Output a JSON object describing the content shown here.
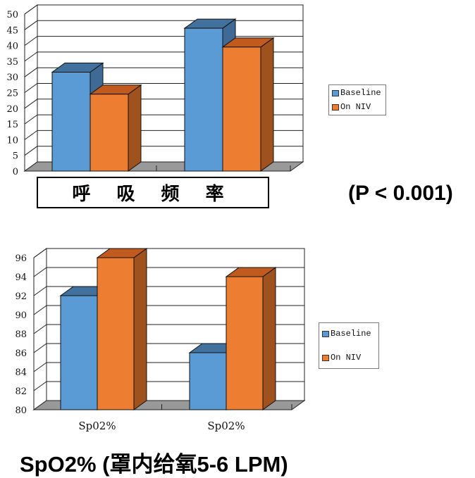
{
  "colors": {
    "baseline_front": "#5b9bd5",
    "baseline_top": "#41719c",
    "baseline_side": "#3f6a96",
    "niv_front": "#ed7d31",
    "niv_top": "#c05a1f",
    "niv_side": "#a0521e",
    "floor": "#999999"
  },
  "chart_data": [
    {
      "type": "bar",
      "title": "呼 吸 频 率",
      "annotation": "(P < 0.001)",
      "categories": [
        "",
        ""
      ],
      "series": [
        {
          "name": "Baseline",
          "values": [
            31.5,
            45.5
          ]
        },
        {
          "name": "On NIV",
          "values": [
            24.5,
            39.5
          ]
        }
      ],
      "xlabel": "",
      "ylabel": "",
      "ylim": [
        0,
        50
      ],
      "yticks": [
        0,
        5,
        10,
        15,
        20,
        25,
        30,
        35,
        40,
        45,
        50
      ],
      "grid": true,
      "style": "3d-clustered-column",
      "legend_position": "right"
    },
    {
      "type": "bar",
      "title": "SpO2% (罩内给氧5-6 LPM)",
      "categories": [
        "Sp02%",
        "Sp02%"
      ],
      "series": [
        {
          "name": "Baseline",
          "values": [
            92,
            86
          ]
        },
        {
          "name": "On NIV",
          "values": [
            96,
            94
          ]
        }
      ],
      "xlabel": "",
      "ylabel": "",
      "ylim": [
        80,
        96
      ],
      "yticks": [
        80,
        82,
        84,
        86,
        88,
        90,
        92,
        94,
        96
      ],
      "grid": true,
      "style": "3d-clustered-column",
      "legend_position": "right"
    }
  ],
  "top_chart": {
    "title_box": "呼 吸 频 率",
    "p_value": "(P < 0.001)",
    "legend": [
      {
        "label": "Baseline"
      },
      {
        "label": "On NIV"
      }
    ]
  },
  "bottom_chart": {
    "title": "SpO2% (罩内给氧5-6 LPM)",
    "legend": [
      {
        "label": "Baseline"
      },
      {
        "label": "On NIV"
      }
    ]
  }
}
